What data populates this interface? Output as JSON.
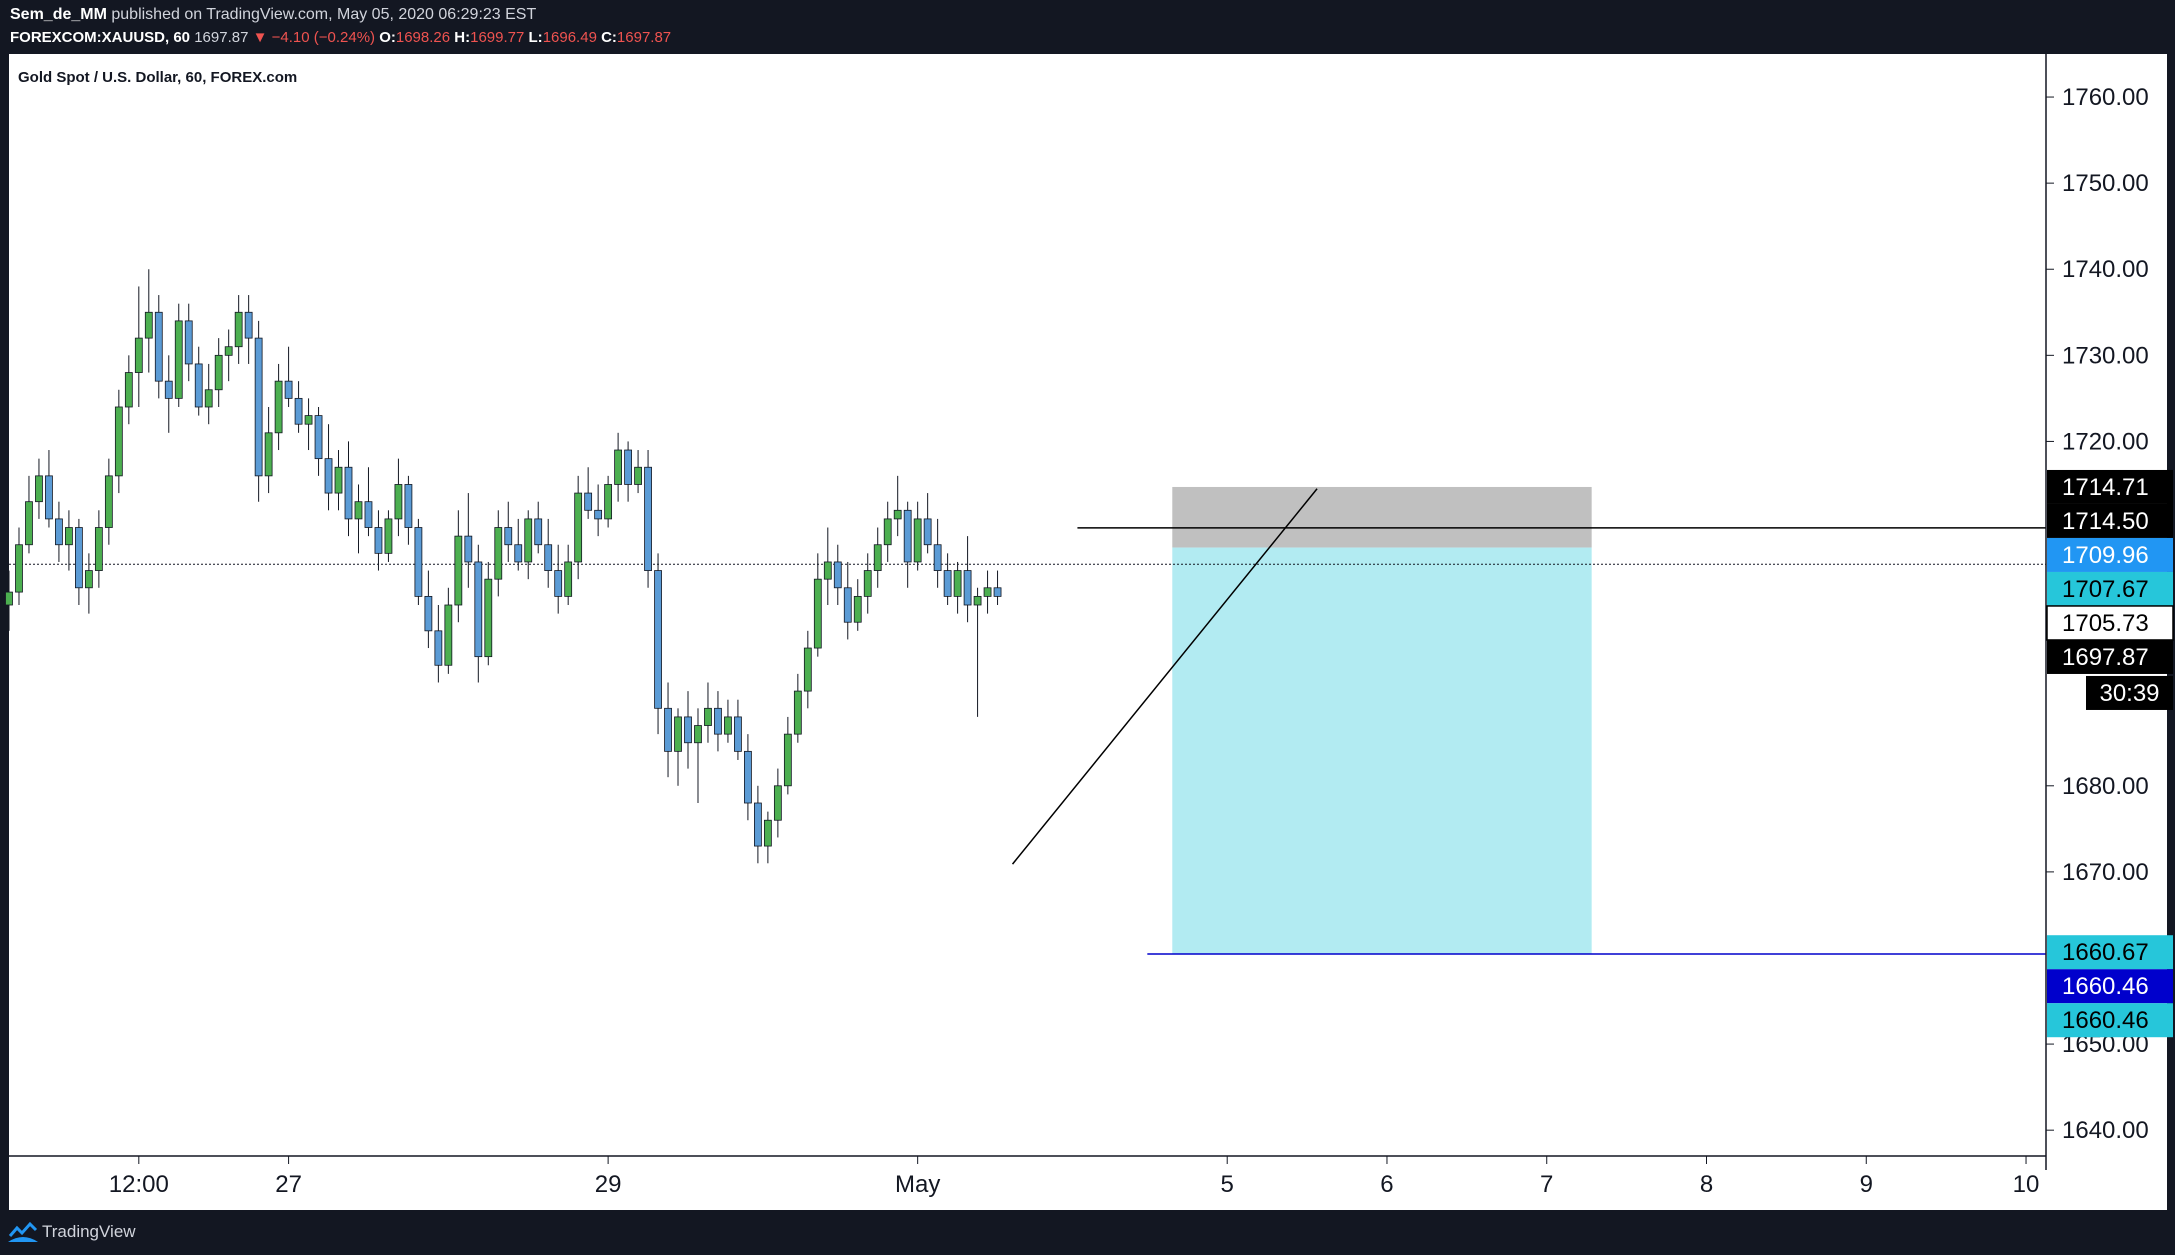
{
  "header": {
    "author": "Sem_de_MM",
    "published_text": "published on TradingView.com, May 05, 2020 06:29:23 EST",
    "symbol_line": "FOREXCOM:XAUUSD, 60",
    "last": "1697.87",
    "change": "▼ −4.10 (−0.24%)",
    "o_label": "O:",
    "o_value": "1698.26",
    "h_label": "H:",
    "h_value": "1699.77",
    "l_label": "L:",
    "l_value": "1696.49",
    "c_label": "C:",
    "c_value": "1697.87"
  },
  "chart_title": "Gold Spot / U.S. Dollar, 60, FOREX.com",
  "footer": {
    "brand": "TradingView"
  },
  "colors": {
    "up": "#4caf50",
    "down": "#5b9bd5",
    "frame": "#131722",
    "target_zone": "#b2ebf2",
    "stop_zone": "#c0c0c0",
    "target_line": "#0000cc"
  },
  "chart_data": {
    "type": "candlestick",
    "title": "Gold Spot / U.S. Dollar, 60, FOREX.com",
    "ylim": [
      1637,
      1765
    ],
    "y_ticks": [
      "1760.00",
      "1750.00",
      "1740.00",
      "1730.00",
      "1720.00",
      "1680.00",
      "1670.00",
      "1650.00",
      "1640.00"
    ],
    "x_ticks": [
      {
        "label": "12:00",
        "bar": 0
      },
      {
        "label": "27",
        "bar": 15
      },
      {
        "label": "29",
        "bar": 47
      },
      {
        "label": "May",
        "bar": 78
      },
      {
        "label": "5",
        "bar": 109
      },
      {
        "label": "6",
        "bar": 125
      },
      {
        "label": "7",
        "bar": 141
      },
      {
        "label": "8",
        "bar": 157
      },
      {
        "label": "9",
        "bar": 173
      },
      {
        "label": "10",
        "bar": 189
      }
    ],
    "bar_count_range": [
      -13,
      191
    ],
    "price_tags": [
      {
        "value": 1714.71,
        "label": "1714.71",
        "bg": "#000000",
        "fg": "#ffffff"
      },
      {
        "value": 1714.5,
        "label": "1714.50",
        "bg": "#000000",
        "fg": "#ffffff"
      },
      {
        "value": 1709.96,
        "label": "1709.96",
        "bg": "#2196f3",
        "fg": "#ffffff"
      },
      {
        "value": 1707.67,
        "label": "1707.67",
        "bg": "#26c6da",
        "fg": "#000000"
      },
      {
        "value": 1705.73,
        "label": "1705.73",
        "bg": "#ffffff",
        "fg": "#000000",
        "border": "#000000"
      },
      {
        "value": 1697.87,
        "label": "1697.87",
        "bg": "#000000",
        "fg": "#ffffff"
      },
      {
        "value": 1660.67,
        "label": "1660.67",
        "bg": "#26c6da",
        "fg": "#000000"
      },
      {
        "value": 1660.46,
        "label": "1660.46",
        "bg": "#0000cc",
        "fg": "#ffffff"
      },
      {
        "value": 1660.46,
        "label": "1660.46",
        "bg": "#26c6da",
        "fg": "#000000"
      }
    ],
    "countdown": "30:39",
    "current_price": 1705.73,
    "horizontal_lines": [
      {
        "value": 1709.96,
        "from_bar": 94,
        "color": "#000000"
      },
      {
        "value": 1660.46,
        "from_bar": 101,
        "color": "#0000cc"
      }
    ],
    "trend_line": {
      "from": {
        "bar": 87.5,
        "value": 1670.9
      },
      "to": {
        "bar": 118,
        "value": 1714.5
      }
    },
    "position_tool": {
      "entry": 1707.67,
      "stop": 1714.71,
      "target": 1660.46,
      "from_bar": 103.5,
      "to_bar": 145.5
    },
    "candles_ohlc": [
      [
        1701.0,
        1705.0,
        1698.0,
        1702.5
      ],
      [
        1702.5,
        1710.0,
        1701.0,
        1708.0
      ],
      [
        1708.0,
        1716.0,
        1707.0,
        1713.0
      ],
      [
        1713.0,
        1718.0,
        1711.0,
        1716.0
      ],
      [
        1716.0,
        1719.0,
        1710.0,
        1711.0
      ],
      [
        1711.0,
        1713.0,
        1706.0,
        1708.0
      ],
      [
        1708.0,
        1712.0,
        1705.0,
        1710.0
      ],
      [
        1710.0,
        1711.0,
        1701.0,
        1703.0
      ],
      [
        1703.0,
        1707.0,
        1700.0,
        1705.0
      ],
      [
        1705.0,
        1712.0,
        1703.0,
        1710.0
      ],
      [
        1710.0,
        1718.0,
        1708.0,
        1716.0
      ],
      [
        1716.0,
        1726.0,
        1714.0,
        1724.0
      ],
      [
        1724.0,
        1730.0,
        1722.0,
        1728.0
      ],
      [
        1728.0,
        1738.0,
        1724.0,
        1732.0
      ],
      [
        1732.0,
        1740.0,
        1728.0,
        1735.0
      ],
      [
        1735.0,
        1737.0,
        1725.0,
        1727.0
      ],
      [
        1727.0,
        1730.0,
        1721.0,
        1725.0
      ],
      [
        1725.0,
        1736.0,
        1724.0,
        1734.0
      ],
      [
        1734.0,
        1736.0,
        1727.0,
        1729.0
      ],
      [
        1729.0,
        1731.0,
        1723.0,
        1724.0
      ],
      [
        1724.0,
        1729.0,
        1722.0,
        1726.0
      ],
      [
        1726.0,
        1732.0,
        1724.0,
        1730.0
      ],
      [
        1730.0,
        1733.0,
        1727.0,
        1731.0
      ],
      [
        1731.0,
        1737.0,
        1729.0,
        1735.0
      ],
      [
        1735.0,
        1737.0,
        1729.0,
        1732.0
      ],
      [
        1732.0,
        1734.0,
        1713.0,
        1716.0
      ],
      [
        1716.0,
        1724.0,
        1714.0,
        1721.0
      ],
      [
        1721.0,
        1729.0,
        1719.0,
        1727.0
      ],
      [
        1727.0,
        1731.0,
        1724.0,
        1725.0
      ],
      [
        1725.0,
        1727.0,
        1721.0,
        1722.0
      ],
      [
        1722.0,
        1725.0,
        1719.0,
        1723.0
      ],
      [
        1723.0,
        1724.0,
        1716.0,
        1718.0
      ],
      [
        1718.0,
        1722.0,
        1712.0,
        1714.0
      ],
      [
        1714.0,
        1719.0,
        1712.0,
        1717.0
      ],
      [
        1717.0,
        1720.0,
        1709.0,
        1711.0
      ],
      [
        1711.0,
        1715.0,
        1707.0,
        1713.0
      ],
      [
        1713.0,
        1717.0,
        1709.0,
        1710.0
      ],
      [
        1710.0,
        1712.0,
        1705.0,
        1707.0
      ],
      [
        1707.0,
        1712.0,
        1706.0,
        1711.0
      ],
      [
        1711.0,
        1718.0,
        1709.0,
        1715.0
      ],
      [
        1715.0,
        1716.0,
        1708.0,
        1710.0
      ],
      [
        1710.0,
        1711.0,
        1701.0,
        1702.0
      ],
      [
        1702.0,
        1705.0,
        1696.0,
        1698.0
      ],
      [
        1698.0,
        1701.0,
        1692.0,
        1694.0
      ],
      [
        1694.0,
        1703.0,
        1693.0,
        1701.0
      ],
      [
        1701.0,
        1712.0,
        1699.0,
        1709.0
      ],
      [
        1709.0,
        1714.0,
        1703.0,
        1706.0
      ],
      [
        1706.0,
        1708.0,
        1692.0,
        1695.0
      ],
      [
        1695.0,
        1706.0,
        1694.0,
        1704.0
      ],
      [
        1704.0,
        1712.0,
        1702.0,
        1710.0
      ],
      [
        1710.0,
        1713.0,
        1706.0,
        1708.0
      ],
      [
        1708.0,
        1711.0,
        1705.0,
        1706.0
      ],
      [
        1706.0,
        1712.0,
        1704.0,
        1711.0
      ],
      [
        1711.0,
        1713.0,
        1707.0,
        1708.0
      ],
      [
        1708.0,
        1711.0,
        1703.0,
        1705.0
      ],
      [
        1705.0,
        1708.0,
        1700.0,
        1702.0
      ],
      [
        1702.0,
        1708.0,
        1701.0,
        1706.0
      ],
      [
        1706.0,
        1716.0,
        1704.0,
        1714.0
      ],
      [
        1714.0,
        1717.0,
        1711.0,
        1712.0
      ],
      [
        1712.0,
        1715.0,
        1709.0,
        1711.0
      ],
      [
        1711.0,
        1716.0,
        1710.0,
        1715.0
      ],
      [
        1715.0,
        1721.0,
        1713.0,
        1719.0
      ],
      [
        1719.0,
        1720.0,
        1713.0,
        1715.0
      ],
      [
        1715.0,
        1719.0,
        1714.0,
        1717.0
      ],
      [
        1717.0,
        1719.0,
        1703.0,
        1705.0
      ],
      [
        1705.0,
        1707.0,
        1686.0,
        1689.0
      ],
      [
        1689.0,
        1692.0,
        1681.0,
        1684.0
      ],
      [
        1684.0,
        1689.0,
        1680.0,
        1688.0
      ],
      [
        1688.0,
        1691.0,
        1682.0,
        1685.0
      ],
      [
        1685.0,
        1689.0,
        1678.0,
        1687.0
      ],
      [
        1687.0,
        1692.0,
        1685.0,
        1689.0
      ],
      [
        1689.0,
        1691.0,
        1684.0,
        1686.0
      ],
      [
        1686.0,
        1690.0,
        1685.0,
        1688.0
      ],
      [
        1688.0,
        1690.0,
        1683.0,
        1684.0
      ],
      [
        1684.0,
        1686.0,
        1676.0,
        1678.0
      ],
      [
        1678.0,
        1680.0,
        1671.0,
        1673.0
      ],
      [
        1673.0,
        1677.0,
        1671.0,
        1676.0
      ],
      [
        1676.0,
        1682.0,
        1674.0,
        1680.0
      ],
      [
        1680.0,
        1688.0,
        1679.0,
        1686.0
      ],
      [
        1686.0,
        1693.0,
        1685.0,
        1691.0
      ],
      [
        1691.0,
        1698.0,
        1689.0,
        1696.0
      ],
      [
        1696.0,
        1707.0,
        1695.0,
        1704.0
      ],
      [
        1704.0,
        1710.0,
        1701.0,
        1706.0
      ],
      [
        1706.0,
        1708.0,
        1701.0,
        1703.0
      ],
      [
        1703.0,
        1706.0,
        1697.0,
        1699.0
      ],
      [
        1699.0,
        1704.0,
        1698.0,
        1702.0
      ],
      [
        1702.0,
        1707.0,
        1700.0,
        1705.0
      ],
      [
        1705.0,
        1710.0,
        1703.0,
        1708.0
      ],
      [
        1708.0,
        1713.0,
        1706.0,
        1711.0
      ],
      [
        1711.0,
        1716.0,
        1709.0,
        1712.0
      ],
      [
        1712.0,
        1713.0,
        1703.0,
        1706.0
      ],
      [
        1706.0,
        1713.0,
        1705.0,
        1711.0
      ],
      [
        1711.0,
        1714.0,
        1707.0,
        1708.0
      ],
      [
        1708.0,
        1711.0,
        1703.0,
        1705.0
      ],
      [
        1705.0,
        1707.0,
        1701.0,
        1702.0
      ],
      [
        1702.0,
        1706.0,
        1700.0,
        1705.0
      ],
      [
        1705.0,
        1709.0,
        1699.0,
        1701.0
      ],
      [
        1701.0,
        1703.0,
        1688.0,
        1702.0
      ],
      [
        1702.0,
        1705.0,
        1700.0,
        1703.0
      ],
      [
        1703.0,
        1705.0,
        1701.0,
        1702.0
      ]
    ],
    "candles_start_bar": -13
  }
}
